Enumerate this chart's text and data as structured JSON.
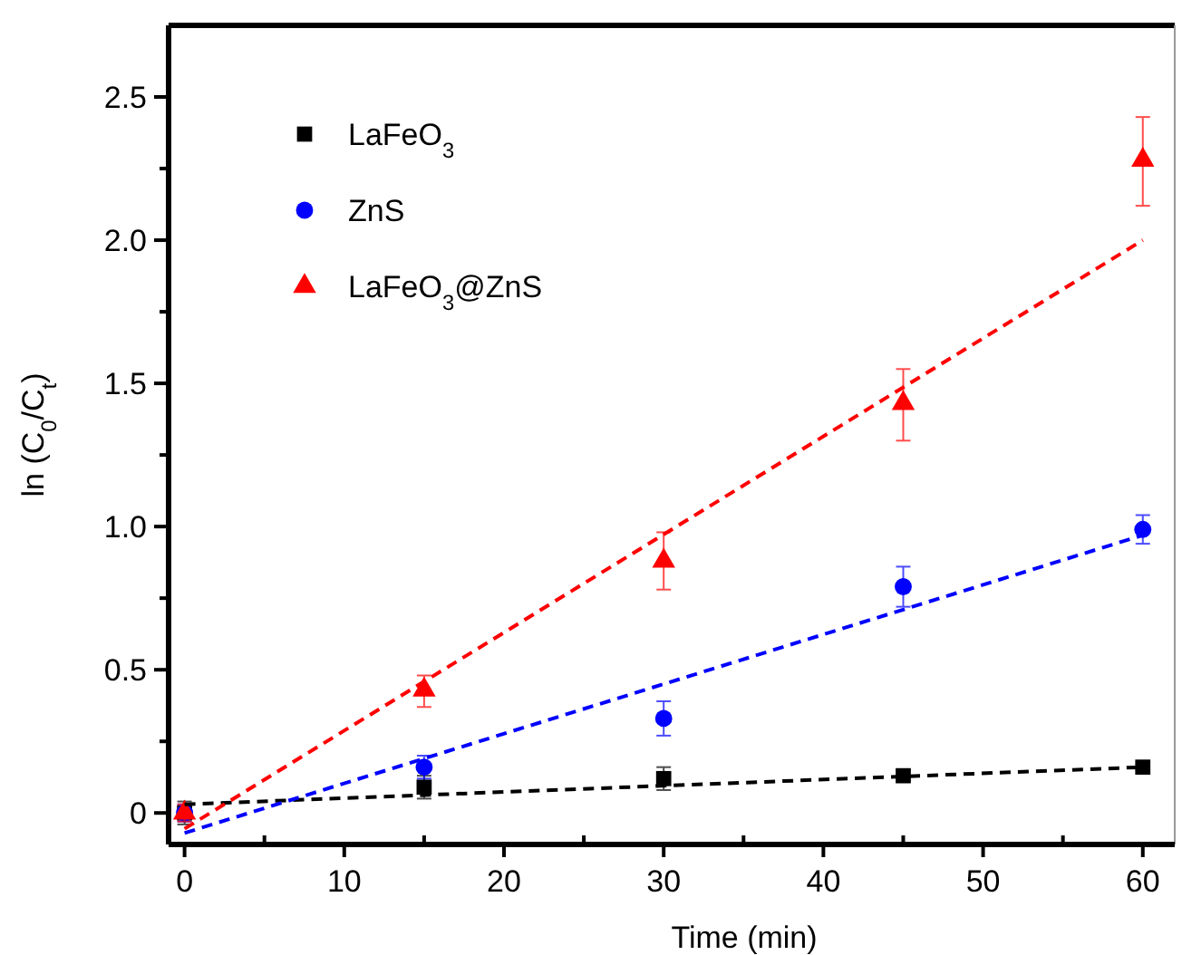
{
  "chart_data": {
    "type": "scatter",
    "xlabel": "Time (min)",
    "ylabel": "ln (C$_{0}$/C$_{t}$)",
    "xlim": [
      -1,
      62
    ],
    "ylim": [
      -0.11,
      2.75
    ],
    "xticks": [
      0,
      {
        "value": 5,
        "label": null
      },
      10,
      {
        "value": 15,
        "label": null
      },
      20,
      {
        "value": 25,
        "label": null
      },
      30,
      {
        "value": 35,
        "label": null
      },
      40,
      {
        "value": 45,
        "label": null
      },
      50,
      {
        "value": 55,
        "label": null
      },
      60
    ],
    "yticks": [
      0,
      {
        "value": 0.25,
        "label": null
      },
      0.5,
      {
        "value": 0.75,
        "label": null
      },
      {
        "value": 1,
        "label": "1.0"
      },
      {
        "value": 1.25,
        "label": null
      },
      1.5,
      {
        "value": 1.75,
        "label": null
      },
      {
        "value": 2,
        "label": "2.0"
      },
      {
        "value": 2.25,
        "label": null
      },
      2.5
    ],
    "legend": "top left",
    "grid": false,
    "series": [
      {
        "name": "LaFeO$_{3}$",
        "color": "#000000",
        "marker": "square",
        "x": [
          0,
          15,
          30,
          45,
          60
        ],
        "values": [
          0.0,
          0.09,
          0.12,
          0.13,
          0.16
        ],
        "errors": [
          0.04,
          0.04,
          0.04,
          0.02,
          0.01
        ]
      },
      {
        "name": "ZnS",
        "color": "#0000ff",
        "marker": "circle",
        "x": [
          0,
          15,
          30,
          45,
          60
        ],
        "values": [
          0.0,
          0.16,
          0.33,
          0.79,
          0.99
        ],
        "errors": [
          0.03,
          0.04,
          0.06,
          0.07,
          0.05
        ]
      },
      {
        "name": "LaFeO$_{3}$@ZnS",
        "color": "#ff0000",
        "marker": "triangle",
        "x": [
          0,
          15,
          30,
          45,
          60
        ],
        "values": [
          0.0,
          0.43,
          0.88,
          1.43,
          2.28
        ],
        "errors": [
          0.03,
          [
            0.37,
            0.48
          ],
          [
            0.78,
            0.98
          ],
          [
            1.3,
            1.55
          ],
          [
            2.12,
            2.43
          ]
        ]
      },
      {
        "type": "line",
        "color": "#000000",
        "line_style": "dashed",
        "marker": "none",
        "x": [
          0,
          60
        ],
        "values": [
          0.03,
          0.16
        ]
      },
      {
        "type": "line",
        "color": "#0000ff",
        "line_style": "dashed",
        "marker": "none",
        "x": [
          0,
          60
        ],
        "values": [
          -0.07,
          0.97
        ]
      },
      {
        "type": "line",
        "color": "#ff0000",
        "line_style": "dashed",
        "marker": "none",
        "x": [
          0,
          60
        ],
        "values": [
          -0.055,
          2.0
        ]
      }
    ]
  }
}
